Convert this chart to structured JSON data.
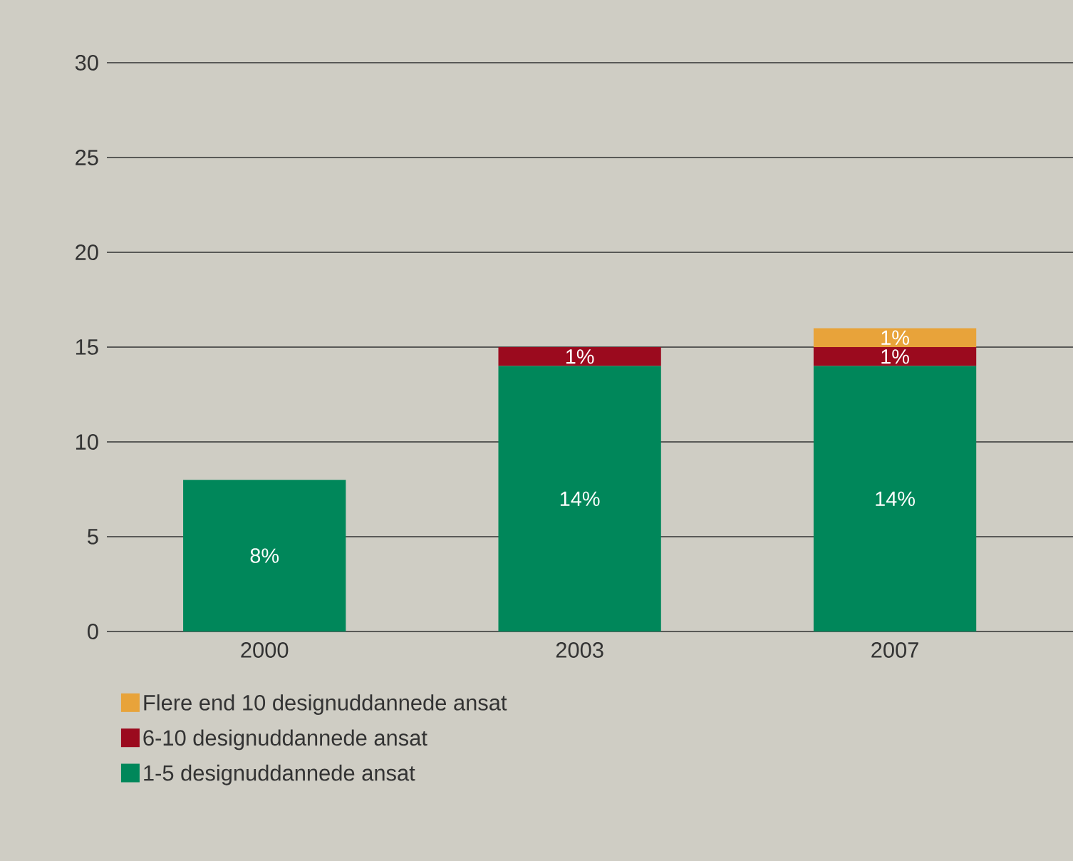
{
  "chart_data": {
    "type": "bar",
    "stacked": true,
    "categories": [
      "2000",
      "2003",
      "2007"
    ],
    "series": [
      {
        "name": "1-5 designuddannede ansat",
        "color": "#00875a",
        "values": [
          8,
          14,
          14
        ],
        "value_labels": [
          "8%",
          "14%",
          "14%"
        ]
      },
      {
        "name": "6-10 designuddannede ansat",
        "color": "#9b0a1e",
        "values": [
          null,
          1,
          1
        ],
        "value_labels": [
          null,
          "1%",
          "1%"
        ]
      },
      {
        "name": "Flere end 10 designuddannede ansat",
        "color": "#e8a33a",
        "values": [
          null,
          null,
          1
        ],
        "value_labels": [
          null,
          null,
          "1%"
        ]
      }
    ],
    "ylim": [
      0,
      30
    ],
    "yticks": [
      0,
      5,
      10,
      15,
      20,
      25,
      30
    ],
    "grid": "y",
    "legend": "bottom"
  }
}
